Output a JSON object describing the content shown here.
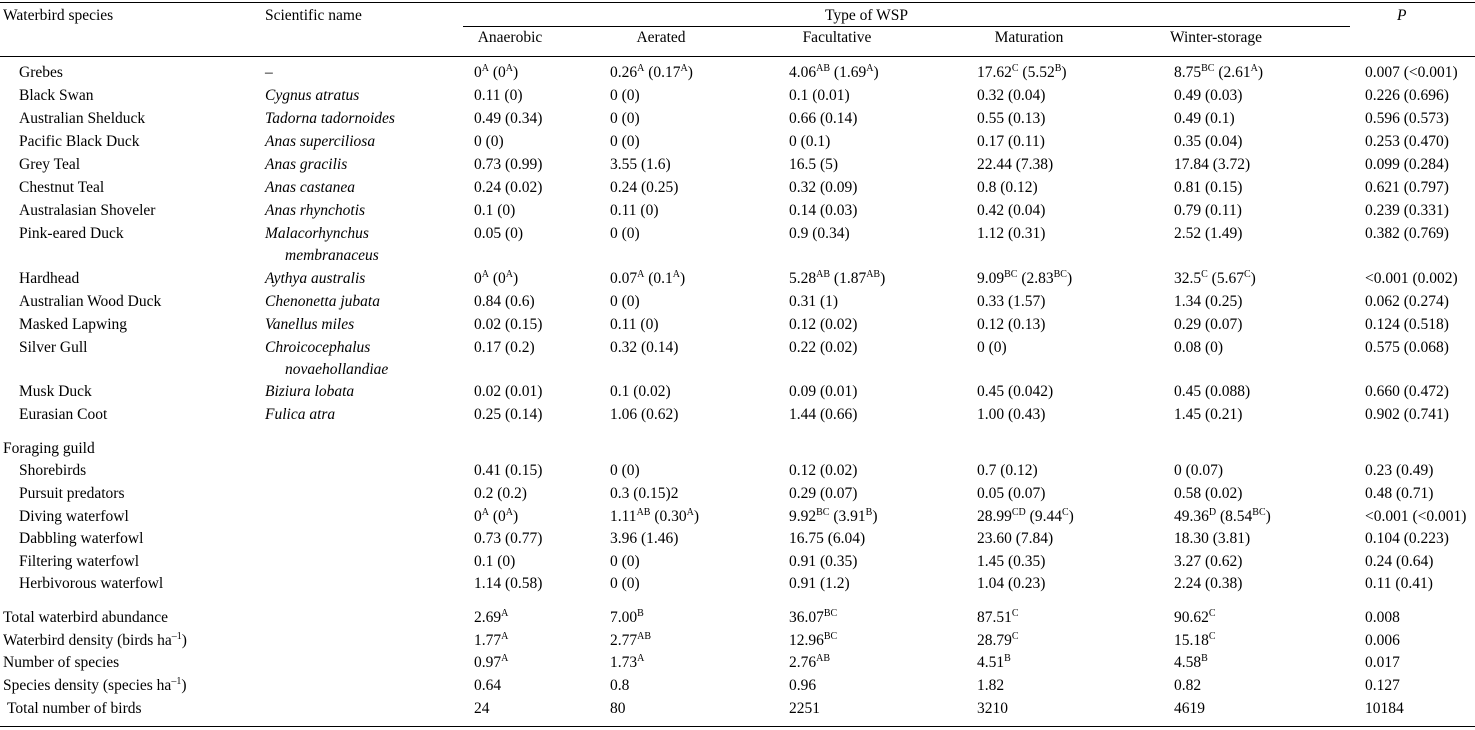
{
  "header": {
    "species_col": "Waterbird species",
    "sci_col": "Scientific name",
    "group_label": "Type of WSP",
    "p_col": "P",
    "wsp_types": [
      "Anaerobic",
      "Aerated",
      "Facultative",
      "Maturation",
      "Winter-storage"
    ]
  },
  "species_rows": [
    {
      "name": "Grebes",
      "sci": [
        "–"
      ],
      "vals": [
        "0^A (0^A)",
        "0.26^A (0.17^A)",
        "4.06^AB (1.69^A)",
        "17.62^C (5.52^B)",
        "8.75^BC (2.61^A)"
      ],
      "p": "0.007 (<0.001)"
    },
    {
      "name": "Black Swan",
      "sci": [
        "Cygnus atratus"
      ],
      "vals": [
        "0.11 (0)",
        "0 (0)",
        "0.1 (0.01)",
        "0.32 (0.04)",
        "0.49 (0.03)"
      ],
      "p": "0.226 (0.696)"
    },
    {
      "name": "Australian Shelduck",
      "sci": [
        "Tadorna tadornoides"
      ],
      "vals": [
        "0.49 (0.34)",
        "0 (0)",
        "0.66 (0.14)",
        "0.55 (0.13)",
        "0.49 (0.1)"
      ],
      "p": "0.596 (0.573)"
    },
    {
      "name": "Pacific Black Duck",
      "sci": [
        "Anas superciliosa"
      ],
      "vals": [
        "0 (0)",
        "0 (0)",
        "0 (0.1)",
        "0.17 (0.11)",
        "0.35 (0.04)"
      ],
      "p": "0.253 (0.470)"
    },
    {
      "name": "Grey Teal",
      "sci": [
        "Anas gracilis"
      ],
      "vals": [
        "0.73 (0.99)",
        "3.55 (1.6)",
        "16.5 (5)",
        "22.44 (7.38)",
        "17.84 (3.72)"
      ],
      "p": "0.099 (0.284)"
    },
    {
      "name": "Chestnut Teal",
      "sci": [
        "Anas castanea"
      ],
      "vals": [
        "0.24 (0.02)",
        "0.24 (0.25)",
        "0.32 (0.09)",
        "0.8 (0.12)",
        "0.81 (0.15)"
      ],
      "p": "0.621 (0.797)"
    },
    {
      "name": "Australasian Shoveler",
      "sci": [
        "Anas rhynchotis"
      ],
      "vals": [
        "0.1 (0)",
        "0.11 (0)",
        "0.14 (0.03)",
        "0.42 (0.04)",
        "0.79 (0.11)"
      ],
      "p": "0.239 (0.331)"
    },
    {
      "name": "Pink-eared Duck",
      "sci": [
        "Malacorhynchus",
        "membranaceus"
      ],
      "vals": [
        "0.05 (0)",
        "0 (0)",
        "0.9 (0.34)",
        "1.12 (0.31)",
        "2.52 (1.49)"
      ],
      "p": "0.382 (0.769)"
    },
    {
      "name": "Hardhead",
      "sci": [
        "Aythya australis"
      ],
      "vals": [
        "0^A (0^A)",
        "0.07^A (0.1^A)",
        "5.28^AB (1.87^AB)",
        "9.09^BC (2.83^BC)",
        "32.5^C (5.67^C)"
      ],
      "p": "<0.001 (0.002)"
    },
    {
      "name": "Australian Wood Duck",
      "sci": [
        "Chenonetta jubata"
      ],
      "vals": [
        "0.84 (0.6)",
        "0 (0)",
        "0.31 (1)",
        "0.33 (1.57)",
        "1.34 (0.25)"
      ],
      "p": "0.062 (0.274)"
    },
    {
      "name": "Masked Lapwing",
      "sci": [
        "Vanellus miles"
      ],
      "vals": [
        "0.02 (0.15)",
        "0.11 (0)",
        "0.12 (0.02)",
        "0.12 (0.13)",
        "0.29 (0.07)"
      ],
      "p": "0.124 (0.518)"
    },
    {
      "name": "Silver Gull",
      "sci": [
        "Chroicocephalus",
        "novaehollandiae"
      ],
      "vals": [
        "0.17 (0.2)",
        "0.32 (0.14)",
        "0.22 (0.02)",
        "0 (0)",
        "0.08 (0)"
      ],
      "p": "0.575 (0.068)"
    },
    {
      "name": "Musk Duck",
      "sci": [
        "Biziura lobata"
      ],
      "vals": [
        "0.02 (0.01)",
        "0.1 (0.02)",
        "0.09 (0.01)",
        "0.45 (0.042)",
        "0.45 (0.088)"
      ],
      "p": "0.660 (0.472)"
    },
    {
      "name": "Eurasian Coot",
      "sci": [
        "Fulica atra"
      ],
      "vals": [
        "0.25 (0.14)",
        "1.06 (0.62)",
        "1.44 (0.66)",
        "1.00 (0.43)",
        "1.45 (0.21)"
      ],
      "p": "0.902 (0.741)"
    }
  ],
  "guild_label": "Foraging guild",
  "guild_rows": [
    {
      "name": "Shorebirds",
      "vals": [
        "0.41 (0.15)",
        "0 (0)",
        "0.12 (0.02)",
        "0.7 (0.12)",
        "0 (0.07)"
      ],
      "p": "0.23 (0.49)"
    },
    {
      "name": "Pursuit predators",
      "vals": [
        "0.2 (0.2)",
        "0.3 (0.15)2",
        "0.29 (0.07)",
        "0.05 (0.07)",
        "0.58 (0.02)"
      ],
      "p": "0.48 (0.71)"
    },
    {
      "name": "Diving waterfowl",
      "vals": [
        "0^A (0^A)",
        "1.11^AB (0.30^A)",
        "9.92^BC (3.91^B)",
        "28.99^CD (9.44^C)",
        "49.36^D (8.54^BC)"
      ],
      "p": "<0.001 (<0.001)"
    },
    {
      "name": "Dabbling waterfowl",
      "vals": [
        "0.73 (0.77)",
        "3.96 (1.46)",
        "16.75 (6.04)",
        "23.60 (7.84)",
        "18.30 (3.81)"
      ],
      "p": "0.104 (0.223)"
    },
    {
      "name": "Filtering waterfowl",
      "vals": [
        "0.1 (0)",
        "0 (0)",
        "0.91 (0.35)",
        "1.45 (0.35)",
        "3.27 (0.62)"
      ],
      "p": "0.24 (0.64)"
    },
    {
      "name": "Herbivorous waterfowl",
      "vals": [
        "1.14 (0.58)",
        "0 (0)",
        "0.91 (1.2)",
        "1.04 (0.23)",
        "2.24 (0.38)"
      ],
      "p": "0.11 (0.41)"
    }
  ],
  "summary_rows": [
    {
      "name": "Total waterbird abundance",
      "vals": [
        "2.69^A",
        "7.00^B",
        "36.07^BC",
        "87.51^C",
        "90.62^C"
      ],
      "p": "0.008"
    },
    {
      "name": "Waterbird density (birds ha^–1)",
      "vals": [
        "1.77^A",
        "2.77^AB",
        "12.96^BC",
        "28.79^C",
        "15.18^C"
      ],
      "p": "0.006"
    },
    {
      "name": "Number of species",
      "vals": [
        "0.97^A",
        "1.73^A",
        "2.76^AB",
        "4.51^B",
        "4.58^B"
      ],
      "p": "0.017"
    },
    {
      "name": "Species density (species ha^–1)",
      "vals": [
        "0.64",
        "0.8",
        "0.96",
        "1.82",
        "0.82"
      ],
      "p": "0.127"
    },
    {
      "name": "Total number of birds",
      "vals": [
        "24",
        "80",
        "2251",
        "3210",
        "4619"
      ],
      "p": "10184"
    }
  ]
}
